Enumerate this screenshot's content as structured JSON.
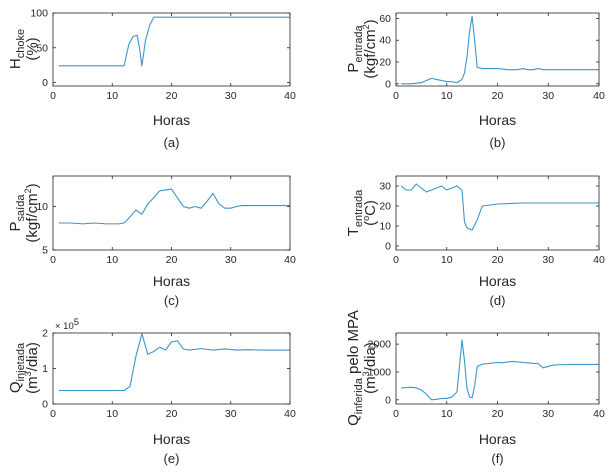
{
  "colors": {
    "line": "#3c95c8",
    "axis": "#262626"
  },
  "chart_data": [
    {
      "id": "a",
      "type": "line",
      "caption": "(a)",
      "xlabel": "Horas",
      "ylabel": {
        "main": "H",
        "sub": "choke",
        "unit": "(%)"
      },
      "xlim": [
        0,
        40
      ],
      "ylim": [
        -5,
        100
      ],
      "xticks": [
        0,
        10,
        20,
        30,
        40
      ],
      "yticks": [
        0,
        50,
        100
      ],
      "grid": false,
      "series": [
        {
          "x": [
            1,
            5,
            10,
            12,
            12.8,
            13.5,
            14.2,
            14.6,
            15,
            15.6,
            16.3,
            17,
            20,
            25,
            30,
            35,
            40
          ],
          "y": [
            24,
            24,
            24,
            24,
            55,
            66,
            68,
            50,
            24,
            60,
            82,
            94,
            94,
            94,
            94,
            94,
            94
          ]
        }
      ]
    },
    {
      "id": "b",
      "type": "line",
      "caption": "(b)",
      "xlabel": "Horas",
      "ylabel": {
        "main": "P",
        "sub": "entrada",
        "unit": "(kgf/cm",
        "unit_sup": "2",
        "unit_end": ")"
      },
      "xlim": [
        0,
        40
      ],
      "ylim": [
        -2,
        65
      ],
      "xticks": [
        0,
        10,
        20,
        30,
        40
      ],
      "yticks": [
        0,
        20,
        40,
        60
      ],
      "grid": false,
      "series": [
        {
          "x": [
            1,
            3,
            5,
            6,
            7,
            8,
            9,
            10,
            11,
            12,
            13,
            13.5,
            14,
            14.5,
            15,
            15.5,
            16,
            17,
            20,
            22,
            24,
            25,
            26,
            27,
            28,
            29,
            30,
            35,
            40
          ],
          "y": [
            0,
            0,
            1,
            3,
            5,
            4,
            3,
            2,
            2,
            1,
            4,
            10,
            25,
            48,
            62,
            40,
            15,
            14,
            14,
            13,
            13,
            14,
            13,
            13,
            14,
            13,
            13,
            13,
            13
          ]
        }
      ]
    },
    {
      "id": "c",
      "type": "line",
      "caption": "(c)",
      "xlabel": "Horas",
      "ylabel": {
        "main": "P",
        "sub": "saída",
        "unit": "(kgf/cm",
        "unit_sup": "2",
        "unit_end": ")"
      },
      "xlim": [
        0,
        40
      ],
      "ylim": [
        5,
        13.5
      ],
      "xticks": [
        0,
        10,
        20,
        30,
        40
      ],
      "yticks": [
        5,
        10
      ],
      "grid": false,
      "series": [
        {
          "x": [
            1,
            3,
            5,
            7,
            9,
            11,
            12,
            13,
            14,
            15,
            16,
            17,
            18,
            19,
            20,
            21,
            22,
            23,
            24,
            25,
            26,
            27,
            28,
            29,
            30,
            31,
            32,
            35,
            40
          ],
          "y": [
            8.1,
            8.1,
            8.0,
            8.1,
            8.0,
            8.0,
            8.1,
            8.8,
            9.6,
            9.1,
            10.3,
            11.0,
            11.8,
            11.9,
            12.0,
            11.0,
            10.0,
            9.8,
            10.0,
            9.8,
            10.6,
            11.5,
            10.3,
            9.8,
            9.8,
            10.0,
            10.1,
            10.1,
            10.1
          ]
        }
      ]
    },
    {
      "id": "d",
      "type": "line",
      "caption": "(d)",
      "xlabel": "Horas",
      "ylabel": {
        "main": "T",
        "sub": "entrada",
        "unit": "(",
        "unit_sup": "o",
        "unit_end": "C)"
      },
      "xlim": [
        0,
        40
      ],
      "ylim": [
        -2,
        35
      ],
      "xticks": [
        0,
        10,
        20,
        30,
        40
      ],
      "yticks": [
        0,
        10,
        20,
        30
      ],
      "grid": false,
      "series": [
        {
          "x": [
            1,
            2,
            3,
            4,
            5,
            6,
            7,
            8,
            9,
            10,
            11,
            12,
            13,
            13.5,
            14,
            15,
            16,
            17,
            20,
            25,
            30,
            35,
            40
          ],
          "y": [
            30,
            28,
            28,
            31,
            29,
            27,
            28,
            29,
            30,
            28,
            29,
            30,
            28,
            12,
            9,
            8,
            13,
            20,
            21,
            21.5,
            21.5,
            21.5,
            21.5
          ]
        }
      ]
    },
    {
      "id": "e",
      "type": "line",
      "caption": "(e)",
      "xlabel": "Horas",
      "ylabel": {
        "main": "Q",
        "sub": "injetada",
        "unit": "(m",
        "unit_sup": "3",
        "unit_end": "/dia)"
      },
      "multiplier": "× 10",
      "multiplier_exp": "5",
      "xlim": [
        0,
        40
      ],
      "ylim": [
        0,
        2
      ],
      "xticks": [
        0,
        10,
        20,
        30,
        40
      ],
      "yticks": [
        0,
        1,
        2
      ],
      "grid": false,
      "series": [
        {
          "x": [
            1,
            5,
            10,
            12,
            13,
            14,
            15,
            16,
            17,
            18,
            19,
            20,
            21,
            22,
            23,
            25,
            27,
            29,
            31,
            33,
            35,
            40
          ],
          "y": [
            0.38,
            0.38,
            0.38,
            0.38,
            0.5,
            1.35,
            1.98,
            1.4,
            1.48,
            1.6,
            1.52,
            1.75,
            1.78,
            1.55,
            1.52,
            1.56,
            1.52,
            1.55,
            1.52,
            1.53,
            1.52,
            1.52
          ]
        }
      ]
    },
    {
      "id": "f",
      "type": "line",
      "caption": "(f)",
      "xlabel": "Horas",
      "ylabel": {
        "main": "Q",
        "sub": "inferida",
        "tail": " pelo MPA",
        "unit": "(m",
        "unit_sup": "3",
        "unit_end": "/dia)"
      },
      "xlim": [
        0,
        40
      ],
      "ylim": [
        -150,
        2400
      ],
      "xticks": [
        0,
        10,
        20,
        30,
        40
      ],
      "yticks": [
        0,
        1000,
        2000
      ],
      "grid": false,
      "series": [
        {
          "x": [
            1,
            2,
            3,
            4,
            5,
            6,
            7,
            8,
            9,
            10,
            11,
            12,
            12.5,
            13,
            13.5,
            14,
            14.5,
            15,
            15.5,
            16,
            17,
            18,
            19,
            20,
            21,
            22,
            23,
            24,
            25,
            26,
            27,
            28,
            29,
            30,
            31,
            32,
            35,
            40
          ],
          "y": [
            420,
            440,
            450,
            430,
            350,
            200,
            0,
            20,
            50,
            50,
            100,
            280,
            1200,
            2150,
            1400,
            400,
            100,
            80,
            500,
            1200,
            1280,
            1300,
            1320,
            1340,
            1330,
            1360,
            1380,
            1360,
            1340,
            1330,
            1310,
            1300,
            1150,
            1200,
            1250,
            1260,
            1270,
            1270
          ]
        }
      ]
    }
  ]
}
